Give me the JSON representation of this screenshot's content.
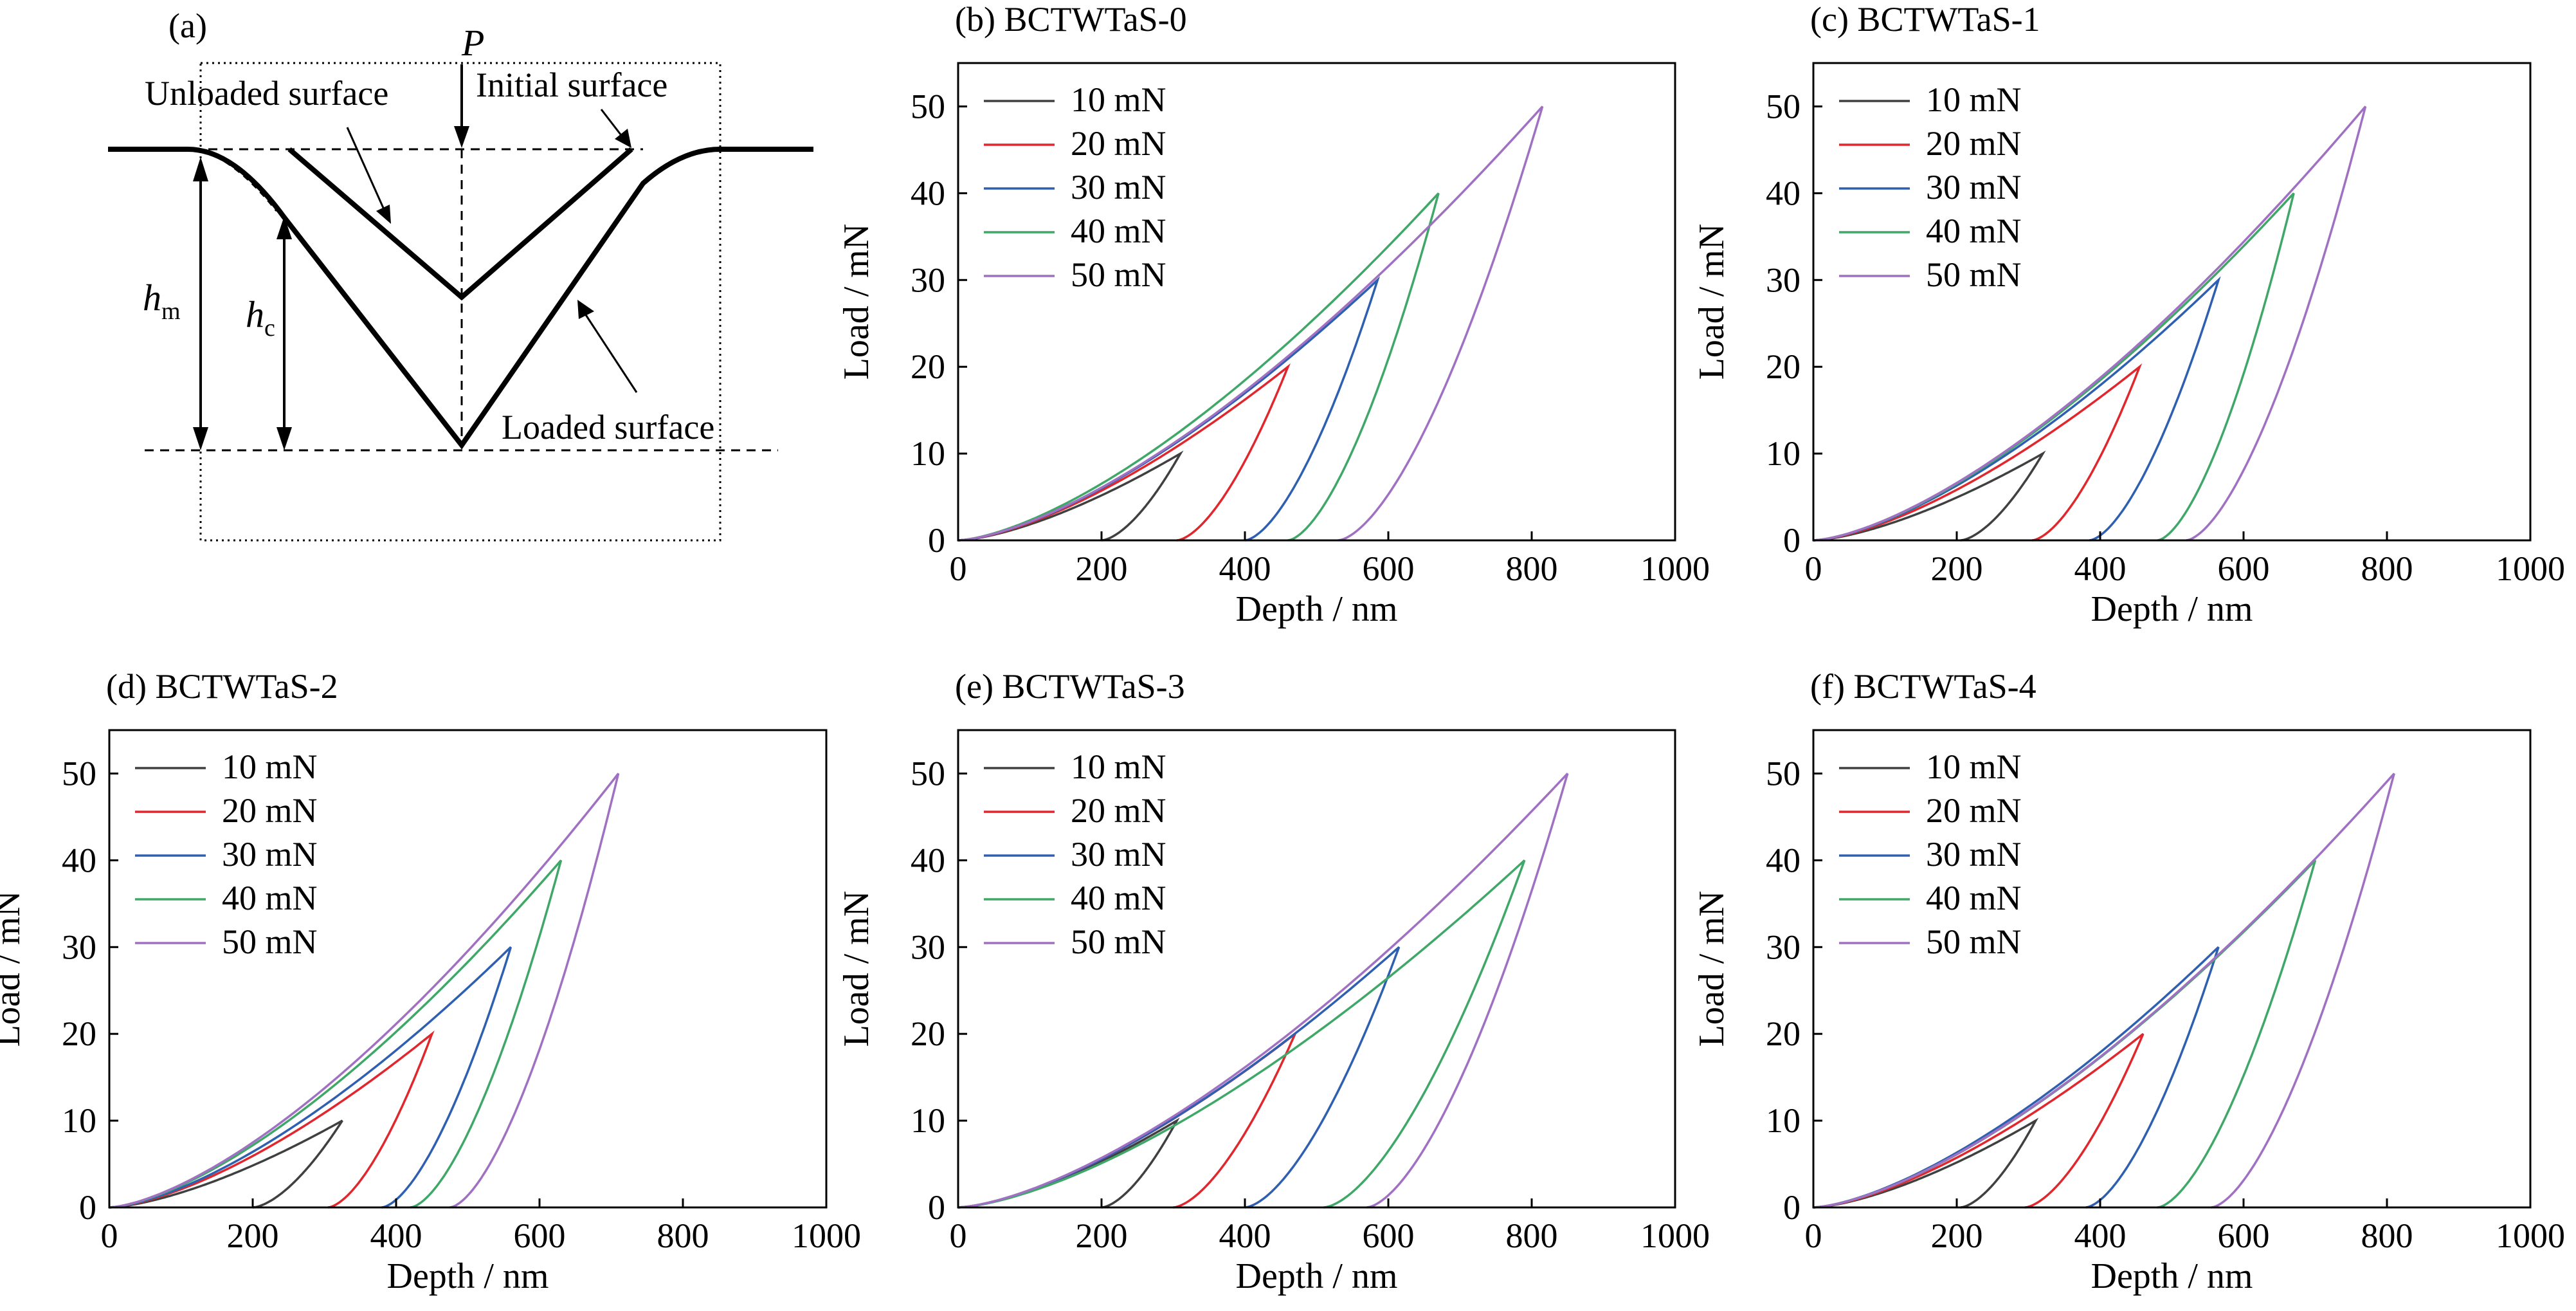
{
  "schematic": {
    "label": "(a)",
    "force_label": "P",
    "unloaded_label": "Unloaded surface",
    "initial_label": "Initial surface",
    "loaded_label": "Loaded surface",
    "hm_base": "h",
    "hm_sub": "m",
    "hc_base": "h",
    "hc_sub": "c"
  },
  "colors": {
    "10 mN": "#404040",
    "20 mN": "#e0272d",
    "30 mN": "#2e5fb0",
    "40 mN": "#3fa767",
    "50 mN": "#a070c2"
  },
  "chart_data": [
    {
      "type": "line",
      "title": "(b) BCTWTaS-0",
      "xlabel": "Depth / nm",
      "ylabel": "Load / mN",
      "xlim": [
        0,
        1000
      ],
      "ylim": [
        0,
        55
      ],
      "xticks": [
        0,
        200,
        400,
        600,
        800,
        1000
      ],
      "yticks": [
        0,
        10,
        20,
        30,
        40,
        50
      ],
      "legend": "top-left",
      "series": [
        {
          "name": "10 mN",
          "peak_load": 10,
          "max_depth": 310,
          "residual_depth": 200
        },
        {
          "name": "20 mN",
          "peak_load": 20,
          "max_depth": 460,
          "residual_depth": 305
        },
        {
          "name": "30 mN",
          "peak_load": 30,
          "max_depth": 585,
          "residual_depth": 400
        },
        {
          "name": "40 mN",
          "peak_load": 40,
          "max_depth": 670,
          "residual_depth": 460
        },
        {
          "name": "50 mN",
          "peak_load": 50,
          "max_depth": 815,
          "residual_depth": 530
        }
      ]
    },
    {
      "type": "line",
      "title": "(c) BCTWTaS-1",
      "xlabel": "Depth / nm",
      "ylabel": "Load / mN",
      "xlim": [
        0,
        1000
      ],
      "ylim": [
        0,
        55
      ],
      "xticks": [
        0,
        200,
        400,
        600,
        800,
        1000
      ],
      "yticks": [
        0,
        10,
        20,
        30,
        40,
        50
      ],
      "legend": "top-left",
      "series": [
        {
          "name": "10 mN",
          "peak_load": 10,
          "max_depth": 320,
          "residual_depth": 205
        },
        {
          "name": "20 mN",
          "peak_load": 20,
          "max_depth": 455,
          "residual_depth": 305
        },
        {
          "name": "30 mN",
          "peak_load": 30,
          "max_depth": 565,
          "residual_depth": 385
        },
        {
          "name": "40 mN",
          "peak_load": 40,
          "max_depth": 670,
          "residual_depth": 480
        },
        {
          "name": "50 mN",
          "peak_load": 50,
          "max_depth": 770,
          "residual_depth": 520
        }
      ]
    },
    {
      "type": "line",
      "title": "(d) BCTWTaS-2",
      "xlabel": "Depth / nm",
      "ylabel": "Load / mN",
      "xlim": [
        0,
        1000
      ],
      "ylim": [
        0,
        55
      ],
      "xticks": [
        0,
        200,
        400,
        600,
        800,
        1000
      ],
      "yticks": [
        0,
        10,
        20,
        30,
        40,
        50
      ],
      "legend": "top-left",
      "series": [
        {
          "name": "10 mN",
          "peak_load": 10,
          "max_depth": 325,
          "residual_depth": 200
        },
        {
          "name": "20 mN",
          "peak_load": 20,
          "max_depth": 450,
          "residual_depth": 305
        },
        {
          "name": "30 mN",
          "peak_load": 30,
          "max_depth": 560,
          "residual_depth": 380
        },
        {
          "name": "40 mN",
          "peak_load": 40,
          "max_depth": 630,
          "residual_depth": 420
        },
        {
          "name": "50 mN",
          "peak_load": 50,
          "max_depth": 710,
          "residual_depth": 475
        }
      ]
    },
    {
      "type": "line",
      "title": "(e) BCTWTaS-3",
      "xlabel": "Depth / nm",
      "ylabel": "Load / mN",
      "xlim": [
        0,
        1000
      ],
      "ylim": [
        0,
        55
      ],
      "xticks": [
        0,
        200,
        400,
        600,
        800,
        1000
      ],
      "yticks": [
        0,
        10,
        20,
        30,
        40,
        50
      ],
      "legend": "top-left",
      "series": [
        {
          "name": "10 mN",
          "peak_load": 10,
          "max_depth": 305,
          "residual_depth": 200
        },
        {
          "name": "20 mN",
          "peak_load": 20,
          "max_depth": 470,
          "residual_depth": 300
        },
        {
          "name": "30 mN",
          "peak_load": 30,
          "max_depth": 615,
          "residual_depth": 400
        },
        {
          "name": "40 mN",
          "peak_load": 40,
          "max_depth": 790,
          "residual_depth": 510
        },
        {
          "name": "50 mN",
          "peak_load": 50,
          "max_depth": 850,
          "residual_depth": 570
        }
      ]
    },
    {
      "type": "line",
      "title": "(f) BCTWTaS-4",
      "xlabel": "Depth / nm",
      "ylabel": "Load / mN",
      "xlim": [
        0,
        1000
      ],
      "ylim": [
        0,
        55
      ],
      "xticks": [
        0,
        200,
        400,
        600,
        800,
        1000
      ],
      "yticks": [
        0,
        10,
        20,
        30,
        40,
        50
      ],
      "legend": "top-left",
      "series": [
        {
          "name": "10 mN",
          "peak_load": 10,
          "max_depth": 310,
          "residual_depth": 205
        },
        {
          "name": "20 mN",
          "peak_load": 20,
          "max_depth": 460,
          "residual_depth": 295
        },
        {
          "name": "30 mN",
          "peak_load": 30,
          "max_depth": 565,
          "residual_depth": 380
        },
        {
          "name": "40 mN",
          "peak_load": 40,
          "max_depth": 700,
          "residual_depth": 480
        },
        {
          "name": "50 mN",
          "peak_load": 50,
          "max_depth": 810,
          "residual_depth": 555
        }
      ]
    }
  ]
}
